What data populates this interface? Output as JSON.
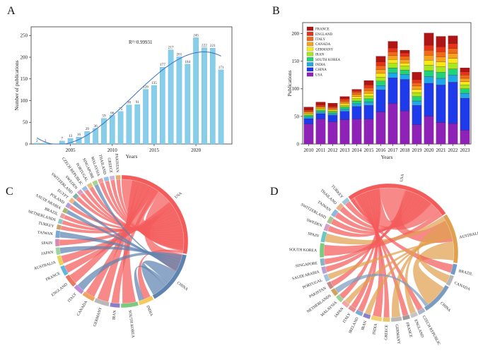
{
  "panels": {
    "a": {
      "letter": "A"
    },
    "b": {
      "letter": "B"
    },
    "c": {
      "letter": "C"
    },
    "d": {
      "letter": "D"
    }
  },
  "chart_data": [
    {
      "type": "bar",
      "panel": "A",
      "title": "",
      "xlabel": "Years",
      "ylabel": "Number of publications",
      "annotation": "R²=0.99931",
      "fit": "polynomial trend line (blue)",
      "x": [
        2001,
        2002,
        2003,
        2004,
        2005,
        2006,
        2007,
        2008,
        2009,
        2010,
        2011,
        2012,
        2013,
        2014,
        2015,
        2016,
        2017,
        2018,
        2019,
        2020,
        2021,
        2022,
        2023
      ],
      "values": [
        2,
        2,
        0,
        7,
        13,
        16,
        29,
        36,
        59,
        66,
        75,
        90,
        91,
        126,
        135,
        177,
        217,
        201,
        184,
        245,
        222,
        221,
        171
      ],
      "value_labels": [
        "2",
        "2",
        "",
        "7",
        "13",
        "16",
        "29",
        "36",
        "59",
        "66",
        "75",
        "90",
        "91",
        "126",
        "135",
        "177",
        "217",
        "201",
        "184",
        "245",
        "222",
        "221",
        "171"
      ],
      "xticks": [
        "2005",
        "2010",
        "2015",
        "2020"
      ],
      "yticks": [
        "0",
        "50",
        "100",
        "150",
        "200",
        "250"
      ],
      "ylim": [
        0,
        270
      ],
      "bar_color": "#87CEEB",
      "fit_color": "#3A6FC2"
    },
    {
      "type": "bar",
      "stacked": true,
      "panel": "B",
      "title": "",
      "xlabel": "Years",
      "ylabel": "Publications",
      "categories": [
        "2010",
        "2011",
        "2012",
        "2013",
        "2014",
        "2015",
        "2016",
        "2017",
        "2018",
        "2019",
        "2020",
        "2021",
        "2022",
        "2023"
      ],
      "series": [
        {
          "name": "USA",
          "color": "#8E22B8",
          "values": [
            36,
            45,
            40,
            44,
            45,
            45,
            58,
            73,
            60,
            35,
            50,
            39,
            37,
            25
          ]
        },
        {
          "name": "CHINA",
          "color": "#1E3BEB",
          "values": [
            10,
            10,
            12,
            15,
            23,
            25,
            40,
            47,
            57,
            35,
            60,
            68,
            75,
            58
          ]
        },
        {
          "name": "INDIA",
          "color": "#1FA8E8",
          "values": [
            3,
            3,
            3,
            4,
            5,
            6,
            8,
            9,
            9,
            8,
            12,
            12,
            13,
            9
          ]
        },
        {
          "name": "SOUTH KOREA",
          "color": "#1FD37A",
          "values": [
            3,
            3,
            3,
            4,
            5,
            6,
            8,
            9,
            8,
            8,
            11,
            11,
            11,
            8
          ]
        },
        {
          "name": "IRAN",
          "color": "#A6E81C",
          "values": [
            2,
            2,
            2,
            3,
            4,
            5,
            7,
            8,
            7,
            7,
            10,
            10,
            10,
            7
          ]
        },
        {
          "name": "GERMANY",
          "color": "#F5E91A",
          "values": [
            2,
            2,
            2,
            3,
            4,
            5,
            7,
            7,
            6,
            6,
            9,
            9,
            9,
            6
          ]
        },
        {
          "name": "CANADA",
          "color": "#F7A21C",
          "values": [
            2,
            2,
            2,
            3,
            4,
            5,
            7,
            7,
            6,
            6,
            9,
            9,
            9,
            6
          ]
        },
        {
          "name": "ITALY",
          "color": "#F06A1A",
          "values": [
            2,
            2,
            2,
            3,
            4,
            5,
            7,
            7,
            6,
            6,
            9,
            9,
            9,
            6
          ]
        },
        {
          "name": "ENGLAND",
          "color": "#E5331A",
          "values": [
            2,
            2,
            2,
            3,
            3,
            5,
            7,
            7,
            6,
            6,
            9,
            9,
            9,
            6
          ]
        },
        {
          "name": "FRANCE",
          "color": "#B01515",
          "values": [
            5,
            5,
            6,
            4,
            2,
            8,
            10,
            12,
            5,
            13,
            22,
            19,
            14,
            7
          ]
        }
      ],
      "yticks": [
        "0",
        "50",
        "100",
        "150",
        "200"
      ],
      "ylim": [
        0,
        220
      ]
    },
    {
      "type": "chord",
      "panel": "C",
      "nodes": [
        {
          "name": "USA",
          "color": "#F45B5B",
          "weight": 46
        },
        {
          "name": "CHINA",
          "color": "#5E83B0",
          "weight": 22
        },
        {
          "name": "INDIA",
          "color": "#F6C95C",
          "weight": 6
        },
        {
          "name": "SOUTH KOREA",
          "color": "#7BCB7E",
          "weight": 7
        },
        {
          "name": "IRAN",
          "color": "#8A80C9",
          "weight": 4
        },
        {
          "name": "GERMANY",
          "color": "#B8B8B8",
          "weight": 6
        },
        {
          "name": "CANADA",
          "color": "#F0A35C",
          "weight": 5
        },
        {
          "name": "ITALY",
          "color": "#C08BD5",
          "weight": 4
        },
        {
          "name": "ENGLAND",
          "color": "#E7775F",
          "weight": 5
        },
        {
          "name": "FRANCE",
          "color": "#5FB6D9",
          "weight": 4
        },
        {
          "name": "AUSTRALIA",
          "color": "#E4D45C",
          "weight": 4
        },
        {
          "name": "JAPAN",
          "color": "#9FD3A0",
          "weight": 3
        },
        {
          "name": "SPAIN",
          "color": "#D78AB0",
          "weight": 3
        },
        {
          "name": "TAIWAN",
          "color": "#76A9D8",
          "weight": 3
        },
        {
          "name": "TURKEY",
          "color": "#C7A26B",
          "weight": 2
        },
        {
          "name": "NETHERLANDS",
          "color": "#8FC8C2",
          "weight": 2
        },
        {
          "name": "BRAZIL",
          "color": "#E8A1A1",
          "weight": 2
        },
        {
          "name": "SAUDI ARABIA",
          "color": "#A9B96A",
          "weight": 2
        },
        {
          "name": "POLAND",
          "color": "#B39DDB",
          "weight": 2
        },
        {
          "name": "EGYPT",
          "color": "#F2B880",
          "weight": 2
        },
        {
          "name": "SWITZERLAND",
          "color": "#7FB3A8",
          "weight": 2
        },
        {
          "name": "SWEDEN",
          "color": "#D9A0C6",
          "weight": 2
        },
        {
          "name": "CZECH REPUBLIC",
          "color": "#9EBBE3",
          "weight": 2
        },
        {
          "name": "PORTUGAL",
          "color": "#E3C27E",
          "weight": 2
        },
        {
          "name": "SINGAPORE",
          "color": "#A7D38C",
          "weight": 2
        },
        {
          "name": "MALAYSIA",
          "color": "#F09C9C",
          "weight": 2
        },
        {
          "name": "THAILAND",
          "color": "#8CC6E7",
          "weight": 2
        },
        {
          "name": "GREECE",
          "color": "#C9B3E3",
          "weight": 2
        },
        {
          "name": "PAKISTAN",
          "color": "#E0B070",
          "weight": 2
        }
      ]
    },
    {
      "type": "chord",
      "panel": "D",
      "nodes": [
        {
          "name": "USA",
          "color": "#F45B5B",
          "weight": 30
        },
        {
          "name": "AUSTRALIA",
          "color": "#E0A14F",
          "weight": 14
        },
        {
          "name": "BRAZIL",
          "color": "#6F9BC8",
          "weight": 3
        },
        {
          "name": "CANADA",
          "color": "#B7B7B7",
          "weight": 3
        },
        {
          "name": "CHINA",
          "color": "#7A9CC0",
          "weight": 9
        },
        {
          "name": "CZECH REPUBLIC",
          "color": "#A9B5C9",
          "weight": 2
        },
        {
          "name": "ENGLAND",
          "color": "#C5C5C5",
          "weight": 2
        },
        {
          "name": "FRANCE",
          "color": "#9C9C9C",
          "weight": 2
        },
        {
          "name": "GERMANY",
          "color": "#B8B8B8",
          "weight": 3
        },
        {
          "name": "GREECE",
          "color": "#E8C56A",
          "weight": 2
        },
        {
          "name": "INDIA",
          "color": "#F3D06B",
          "weight": 3
        },
        {
          "name": "IRAN",
          "color": "#8A80C9",
          "weight": 2
        },
        {
          "name": "IRELAND",
          "color": "#7FA8D6",
          "weight": 2
        },
        {
          "name": "ITALY",
          "color": "#E58E8E",
          "weight": 2
        },
        {
          "name": "JAPAN",
          "color": "#F2A3A3",
          "weight": 2
        },
        {
          "name": "MALAYSIA",
          "color": "#9BD29B",
          "weight": 2
        },
        {
          "name": "NETHERLANDS",
          "color": "#D5A25C",
          "weight": 2
        },
        {
          "name": "PAKISTAN",
          "color": "#C78A8A",
          "weight": 2
        },
        {
          "name": "PORTUGAL",
          "color": "#A3C3E0",
          "weight": 2
        },
        {
          "name": "SAUDI ARABIA",
          "color": "#B7A0D8",
          "weight": 2
        },
        {
          "name": "SINGAPORE",
          "color": "#7FB6C8",
          "weight": 2
        },
        {
          "name": "SOUTH KOREA",
          "color": "#7BCB7E",
          "weight": 4
        },
        {
          "name": "SPAIN",
          "color": "#6BC6C6",
          "weight": 3
        },
        {
          "name": "SWEDEN",
          "color": "#D0A0C8",
          "weight": 2
        },
        {
          "name": "SWITZERLAND",
          "color": "#A7C78E",
          "weight": 2
        },
        {
          "name": "TAIWAN",
          "color": "#8DB6E0",
          "weight": 2
        },
        {
          "name": "THAILAND",
          "color": "#E6B38A",
          "weight": 2
        },
        {
          "name": "TURKEY",
          "color": "#9FC7DA",
          "weight": 2
        }
      ]
    }
  ]
}
